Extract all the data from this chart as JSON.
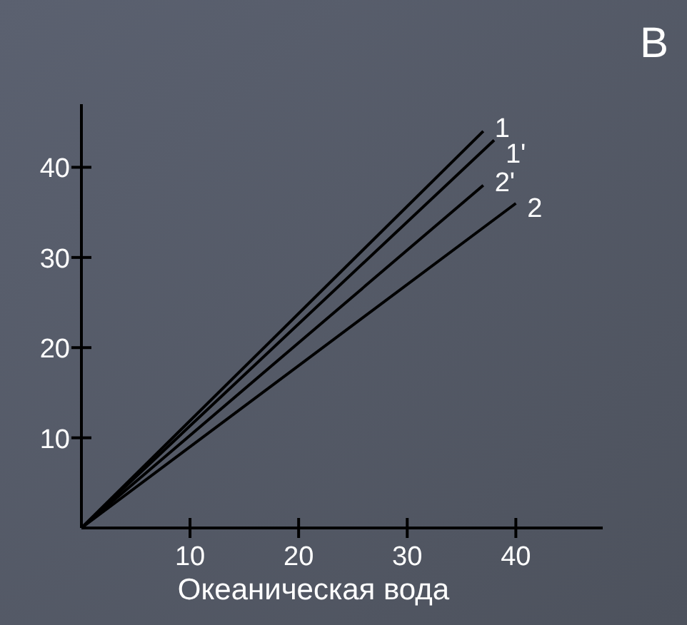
{
  "chart_data": {
    "type": "line",
    "title": "В",
    "xlabel": "Океаническая вода",
    "xlim": [
      0,
      48
    ],
    "ylim": [
      0,
      47
    ],
    "xticks": [
      10,
      20,
      30,
      40
    ],
    "yticks": [
      10,
      20,
      30,
      40
    ],
    "grid": false,
    "legend": false,
    "marker": "none",
    "line_style": "solid",
    "series": [
      {
        "name": "1",
        "color": "#000000",
        "x": [
          0,
          37
        ],
        "values": [
          0,
          44
        ]
      },
      {
        "name": "1'",
        "color": "#000000",
        "x": [
          0,
          38
        ],
        "values": [
          0,
          43
        ]
      },
      {
        "name": "2'",
        "color": "#000000",
        "x": [
          0,
          37
        ],
        "values": [
          0,
          38
        ]
      },
      {
        "name": "2",
        "color": "#000000",
        "x": [
          0,
          40
        ],
        "values": [
          0,
          36
        ]
      }
    ]
  }
}
